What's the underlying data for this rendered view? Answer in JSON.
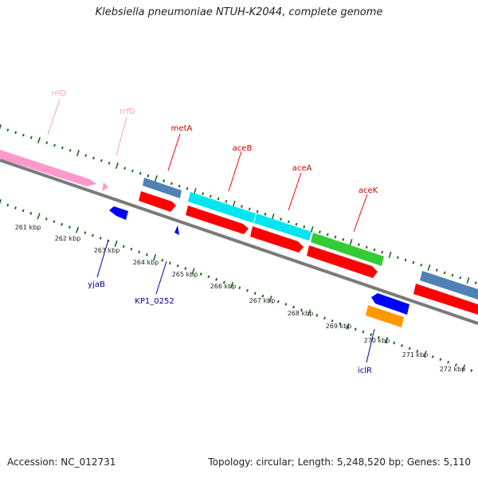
{
  "title": "Klebsiella pneumoniae NTUH-K2044, complete genome",
  "footer": {
    "accession": "Accession: NC_012731",
    "topology": "Topology: circular; Length: 5,248,520 bp; Genes: 5,110"
  },
  "colors": {
    "backbone": "#7a7a7a",
    "tick": "#1c6b1c",
    "rrna": "#ff99cc",
    "red_gene": "#ff0000",
    "blue_gene": "#0000ff",
    "steel_gene": "#4f81b5",
    "cyan_gene": "#00e5ef",
    "green_gene": "#33cc33",
    "orange_gene": "#ff9900",
    "label_dark_red": "#cc0000",
    "label_navy": "#000099"
  },
  "scale_labels": [
    "261 kbp",
    "262 kbp",
    "263 kbp",
    "264 kbp",
    "265 kbp",
    "266 kbp",
    "267 kbp",
    "268 kbp",
    "269 kbp",
    "270 kbp",
    "271 kbp",
    "272 kbp"
  ],
  "gene_labels": {
    "rrlD": "rrlD",
    "rrfD": "rrfD",
    "metA": "metA",
    "aceB": "aceB",
    "aceA": "aceA",
    "aceK": "aceK",
    "yjaB": "yjaB",
    "KP1_0252": "KP1_0252",
    "iclR": "iclR"
  }
}
